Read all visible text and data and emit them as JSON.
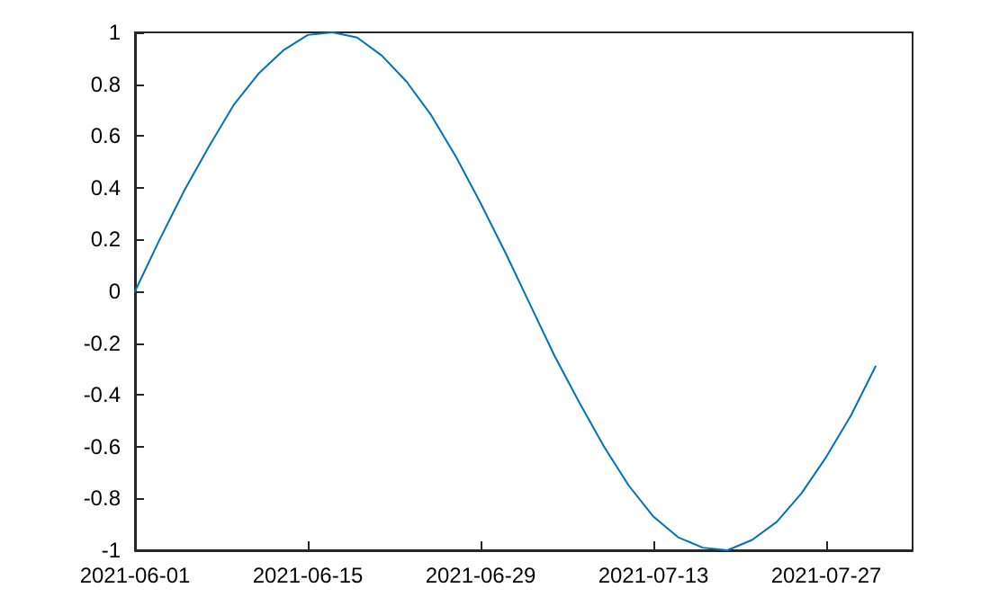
{
  "chart_data": {
    "type": "line",
    "x": [
      "2021-06-01",
      "2021-06-03",
      "2021-06-05",
      "2021-06-07",
      "2021-06-09",
      "2021-06-11",
      "2021-06-13",
      "2021-06-15",
      "2021-06-17",
      "2021-06-19",
      "2021-06-21",
      "2021-06-23",
      "2021-06-25",
      "2021-06-27",
      "2021-06-29",
      "2021-07-01",
      "2021-07-03",
      "2021-07-05",
      "2021-07-07",
      "2021-07-09",
      "2021-07-11",
      "2021-07-13",
      "2021-07-15",
      "2021-07-17",
      "2021-07-19",
      "2021-07-21",
      "2021-07-23",
      "2021-07-25",
      "2021-07-27",
      "2021-07-29",
      "2021-07-31"
    ],
    "series": [
      {
        "color": "#0072bd",
        "values": [
          0,
          0.2,
          0.39,
          0.56,
          0.72,
          0.84,
          0.93,
          0.99,
          1,
          0.98,
          0.91,
          0.81,
          0.68,
          0.52,
          0.34,
          0.15,
          -0.05,
          -0.25,
          -0.43,
          -0.6,
          -0.75,
          -0.87,
          -0.95,
          -0.99,
          -1,
          -0.96,
          -0.89,
          -0.78,
          -0.64,
          -0.48,
          -0.29
        ]
      }
    ],
    "xlim": [
      "2021-06-01",
      "2021-08-03"
    ],
    "xticks": [
      "2021-06-01",
      "2021-06-15",
      "2021-06-29",
      "2021-07-13",
      "2021-07-27"
    ],
    "ylim": [
      -1,
      1
    ],
    "yticks": [
      -1,
      -0.8,
      -0.6,
      -0.4,
      -0.2,
      0,
      0.2,
      0.4,
      0.6,
      0.8,
      1
    ],
    "grid": false,
    "marker": "none",
    "line_style": "solid"
  }
}
